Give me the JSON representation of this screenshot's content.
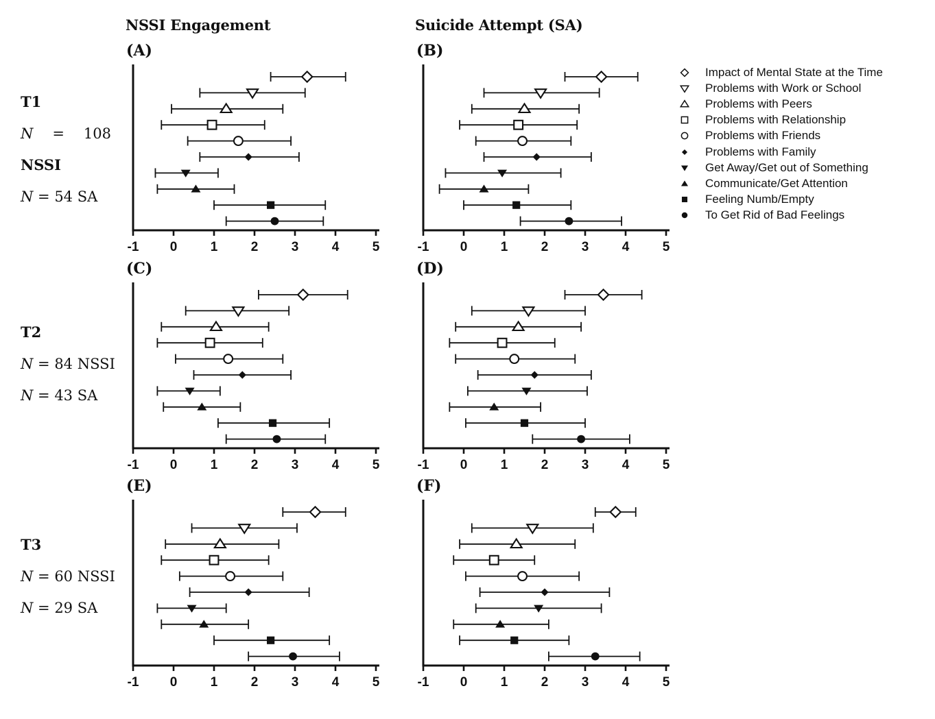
{
  "figure": {
    "column_headers": [
      "NSSI Engagement",
      "Suicide Attempt (SA)"
    ],
    "side_labels": [
      {
        "lines": [
          {
            "text": "T1",
            "bold": true
          },
          {
            "text": "N = 108",
            "justify": true
          },
          {
            "text": "NSSI",
            "bold": true
          },
          {
            "text": "N = 54 SA"
          }
        ]
      },
      {
        "lines": [
          {
            "text": "T2",
            "bold": true
          },
          {
            "text": "N = 84 NSSI"
          },
          {
            "text": "N = 43 SA"
          }
        ]
      },
      {
        "lines": [
          {
            "text": "T3",
            "bold": true
          },
          {
            "text": "N = 60 NSSI"
          },
          {
            "text": "N = 29 SA"
          }
        ]
      }
    ],
    "colors": {
      "ink": "#111111",
      "background": "#ffffff"
    }
  },
  "legend": [
    {
      "marker": "open-diamond",
      "label": "Impact of Mental State at the Time"
    },
    {
      "marker": "open-triangle-down",
      "label": "Problems with Work or School"
    },
    {
      "marker": "open-triangle-up",
      "label": "Problems with Peers"
    },
    {
      "marker": "open-square",
      "label": "Problems with Relationship"
    },
    {
      "marker": "open-circle",
      "label": "Problems with Friends"
    },
    {
      "marker": "filled-diamond",
      "label": "Problems with Family"
    },
    {
      "marker": "filled-triangle-down",
      "label": "Get Away/Get out of Something"
    },
    {
      "marker": "filled-triangle-up",
      "label": "Communicate/Get Attention"
    },
    {
      "marker": "filled-square",
      "label": "Feeling Numb/Empty"
    },
    {
      "marker": "filled-circle",
      "label": "To Get Rid of Bad Feelings"
    }
  ],
  "chart_data": [
    {
      "panel_label": "(A)",
      "type": "scatter",
      "row_group": "T1",
      "column_group": "NSSI Engagement",
      "xlim": [
        -1,
        5
      ],
      "xticks": [
        -1,
        0,
        1,
        2,
        3,
        4,
        5
      ],
      "series": [
        {
          "name": "Impact of Mental State at the Time",
          "marker": "open-diamond",
          "mean": 3.3,
          "ci": [
            2.4,
            4.25
          ]
        },
        {
          "name": "Problems with Work or School",
          "marker": "open-triangle-down",
          "mean": 1.95,
          "ci": [
            0.65,
            3.25
          ]
        },
        {
          "name": "Problems with Peers",
          "marker": "open-triangle-up",
          "mean": 1.3,
          "ci": [
            -0.05,
            2.7
          ]
        },
        {
          "name": "Problems with Relationship",
          "marker": "open-square",
          "mean": 0.95,
          "ci": [
            -0.3,
            2.25
          ]
        },
        {
          "name": "Problems with Friends",
          "marker": "open-circle",
          "mean": 1.6,
          "ci": [
            0.35,
            2.9
          ]
        },
        {
          "name": "Problems with Family",
          "marker": "filled-diamond",
          "mean": 1.85,
          "ci": [
            0.65,
            3.1
          ]
        },
        {
          "name": "Get Away/Get out of Something",
          "marker": "filled-triangle-down",
          "mean": 0.3,
          "ci": [
            -0.45,
            1.1
          ]
        },
        {
          "name": "Communicate/Get Attention",
          "marker": "filled-triangle-up",
          "mean": 0.55,
          "ci": [
            -0.4,
            1.5
          ]
        },
        {
          "name": "Feeling Numb/Empty",
          "marker": "filled-square",
          "mean": 2.4,
          "ci": [
            1.0,
            3.75
          ]
        },
        {
          "name": "To Get Rid of Bad Feelings",
          "marker": "filled-circle",
          "mean": 2.5,
          "ci": [
            1.3,
            3.7
          ]
        }
      ]
    },
    {
      "panel_label": "(B)",
      "type": "scatter",
      "row_group": "T1",
      "column_group": "Suicide Attempt (SA)",
      "xlim": [
        -1,
        5
      ],
      "xticks": [
        -1,
        0,
        1,
        2,
        3,
        4,
        5
      ],
      "series": [
        {
          "name": "Impact of Mental State at the Time",
          "marker": "open-diamond",
          "mean": 3.4,
          "ci": [
            2.5,
            4.3
          ]
        },
        {
          "name": "Problems with Work or School",
          "marker": "open-triangle-down",
          "mean": 1.9,
          "ci": [
            0.5,
            3.35
          ]
        },
        {
          "name": "Problems with Peers",
          "marker": "open-triangle-up",
          "mean": 1.5,
          "ci": [
            0.2,
            2.85
          ]
        },
        {
          "name": "Problems with Relationship",
          "marker": "open-square",
          "mean": 1.35,
          "ci": [
            -0.1,
            2.8
          ]
        },
        {
          "name": "Problems with Friends",
          "marker": "open-circle",
          "mean": 1.45,
          "ci": [
            0.3,
            2.65
          ]
        },
        {
          "name": "Problems with Family",
          "marker": "filled-diamond",
          "mean": 1.8,
          "ci": [
            0.5,
            3.15
          ]
        },
        {
          "name": "Get Away/Get out of Something",
          "marker": "filled-triangle-down",
          "mean": 0.95,
          "ci": [
            -0.45,
            2.4
          ]
        },
        {
          "name": "Communicate/Get Attention",
          "marker": "filled-triangle-up",
          "mean": 0.5,
          "ci": [
            -0.6,
            1.6
          ]
        },
        {
          "name": "Feeling Numb/Empty",
          "marker": "filled-square",
          "mean": 1.3,
          "ci": [
            0.0,
            2.65
          ]
        },
        {
          "name": "To Get Rid of Bad Feelings",
          "marker": "filled-circle",
          "mean": 2.6,
          "ci": [
            1.4,
            3.9
          ]
        }
      ]
    },
    {
      "panel_label": "(C)",
      "type": "scatter",
      "row_group": "T2",
      "column_group": "NSSI Engagement",
      "xlim": [
        -1,
        5
      ],
      "xticks": [
        -1,
        0,
        1,
        2,
        3,
        4,
        5
      ],
      "series": [
        {
          "name": "Impact of Mental State at the Time",
          "marker": "open-diamond",
          "mean": 3.2,
          "ci": [
            2.1,
            4.3
          ]
        },
        {
          "name": "Problems with Work or School",
          "marker": "open-triangle-down",
          "mean": 1.6,
          "ci": [
            0.3,
            2.85
          ]
        },
        {
          "name": "Problems with Peers",
          "marker": "open-triangle-up",
          "mean": 1.05,
          "ci": [
            -0.3,
            2.35
          ]
        },
        {
          "name": "Problems with Relationship",
          "marker": "open-square",
          "mean": 0.9,
          "ci": [
            -0.4,
            2.2
          ]
        },
        {
          "name": "Problems with Friends",
          "marker": "open-circle",
          "mean": 1.35,
          "ci": [
            0.05,
            2.7
          ]
        },
        {
          "name": "Problems with Family",
          "marker": "filled-diamond",
          "mean": 1.7,
          "ci": [
            0.5,
            2.9
          ]
        },
        {
          "name": "Get Away/Get out of Something",
          "marker": "filled-triangle-down",
          "mean": 0.4,
          "ci": [
            -0.4,
            1.15
          ]
        },
        {
          "name": "Communicate/Get Attention",
          "marker": "filled-triangle-up",
          "mean": 0.7,
          "ci": [
            -0.25,
            1.65
          ]
        },
        {
          "name": "Feeling Numb/Empty",
          "marker": "filled-square",
          "mean": 2.45,
          "ci": [
            1.1,
            3.85
          ]
        },
        {
          "name": "To Get Rid of Bad Feelings",
          "marker": "filled-circle",
          "mean": 2.55,
          "ci": [
            1.3,
            3.75
          ]
        }
      ]
    },
    {
      "panel_label": "(D)",
      "type": "scatter",
      "row_group": "T2",
      "column_group": "Suicide Attempt (SA)",
      "xlim": [
        -1,
        5
      ],
      "xticks": [
        -1,
        0,
        1,
        2,
        3,
        4,
        5
      ],
      "series": [
        {
          "name": "Impact of Mental State at the Time",
          "marker": "open-diamond",
          "mean": 3.45,
          "ci": [
            2.5,
            4.4
          ]
        },
        {
          "name": "Problems with Work or School",
          "marker": "open-triangle-down",
          "mean": 1.6,
          "ci": [
            0.2,
            3.0
          ]
        },
        {
          "name": "Problems with Peers",
          "marker": "open-triangle-up",
          "mean": 1.35,
          "ci": [
            -0.2,
            2.9
          ]
        },
        {
          "name": "Problems with Relationship",
          "marker": "open-square",
          "mean": 0.95,
          "ci": [
            -0.35,
            2.25
          ]
        },
        {
          "name": "Problems with Friends",
          "marker": "open-circle",
          "mean": 1.25,
          "ci": [
            -0.2,
            2.75
          ]
        },
        {
          "name": "Problems with Family",
          "marker": "filled-diamond",
          "mean": 1.75,
          "ci": [
            0.35,
            3.15
          ]
        },
        {
          "name": "Get Away/Get out of Something",
          "marker": "filled-triangle-down",
          "mean": 1.55,
          "ci": [
            0.1,
            3.05
          ]
        },
        {
          "name": "Communicate/Get Attention",
          "marker": "filled-triangle-up",
          "mean": 0.75,
          "ci": [
            -0.35,
            1.9
          ]
        },
        {
          "name": "Feeling Numb/Empty",
          "marker": "filled-square",
          "mean": 1.5,
          "ci": [
            0.05,
            3.0
          ]
        },
        {
          "name": "To Get Rid of Bad Feelings",
          "marker": "filled-circle",
          "mean": 2.9,
          "ci": [
            1.7,
            4.1
          ]
        }
      ]
    },
    {
      "panel_label": "(E)",
      "type": "scatter",
      "row_group": "T3",
      "column_group": "NSSI Engagement",
      "xlim": [
        -1,
        5
      ],
      "xticks": [
        -1,
        0,
        1,
        2,
        3,
        4,
        5
      ],
      "series": [
        {
          "name": "Impact of Mental State at the Time",
          "marker": "open-diamond",
          "mean": 3.5,
          "ci": [
            2.7,
            4.25
          ]
        },
        {
          "name": "Problems with Work or School",
          "marker": "open-triangle-down",
          "mean": 1.75,
          "ci": [
            0.45,
            3.05
          ]
        },
        {
          "name": "Problems with Peers",
          "marker": "open-triangle-up",
          "mean": 1.15,
          "ci": [
            -0.2,
            2.6
          ]
        },
        {
          "name": "Problems with Relationship",
          "marker": "open-square",
          "mean": 1.0,
          "ci": [
            -0.3,
            2.35
          ]
        },
        {
          "name": "Problems with Friends",
          "marker": "open-circle",
          "mean": 1.4,
          "ci": [
            0.15,
            2.7
          ]
        },
        {
          "name": "Problems with Family",
          "marker": "filled-diamond",
          "mean": 1.85,
          "ci": [
            0.4,
            3.35
          ]
        },
        {
          "name": "Get Away/Get out of Something",
          "marker": "filled-triangle-down",
          "mean": 0.45,
          "ci": [
            -0.4,
            1.3
          ]
        },
        {
          "name": "Communicate/Get Attention",
          "marker": "filled-triangle-up",
          "mean": 0.75,
          "ci": [
            -0.3,
            1.85
          ]
        },
        {
          "name": "Feeling Numb/Empty",
          "marker": "filled-square",
          "mean": 2.4,
          "ci": [
            1.0,
            3.85
          ]
        },
        {
          "name": "To Get Rid of Bad Feelings",
          "marker": "filled-circle",
          "mean": 2.95,
          "ci": [
            1.85,
            4.1
          ]
        }
      ]
    },
    {
      "panel_label": "(F)",
      "type": "scatter",
      "row_group": "T3",
      "column_group": "Suicide Attempt (SA)",
      "xlim": [
        -1,
        5
      ],
      "xticks": [
        -1,
        0,
        1,
        2,
        3,
        4,
        5
      ],
      "series": [
        {
          "name": "Impact of Mental State at the Time",
          "marker": "open-diamond",
          "mean": 3.75,
          "ci": [
            3.25,
            4.25
          ]
        },
        {
          "name": "Problems with Work or School",
          "marker": "open-triangle-down",
          "mean": 1.7,
          "ci": [
            0.2,
            3.2
          ]
        },
        {
          "name": "Problems with Peers",
          "marker": "open-triangle-up",
          "mean": 1.3,
          "ci": [
            -0.1,
            2.75
          ]
        },
        {
          "name": "Problems with Relationship",
          "marker": "open-square",
          "mean": 0.75,
          "ci": [
            -0.25,
            1.75
          ]
        },
        {
          "name": "Problems with Friends",
          "marker": "open-circle",
          "mean": 1.45,
          "ci": [
            0.05,
            2.85
          ]
        },
        {
          "name": "Problems with Family",
          "marker": "filled-diamond",
          "mean": 2.0,
          "ci": [
            0.4,
            3.6
          ]
        },
        {
          "name": "Get Away/Get out of Something",
          "marker": "filled-triangle-down",
          "mean": 1.85,
          "ci": [
            0.3,
            3.4
          ]
        },
        {
          "name": "Communicate/Get Attention",
          "marker": "filled-triangle-up",
          "mean": 0.9,
          "ci": [
            -0.25,
            2.1
          ]
        },
        {
          "name": "Feeling Numb/Empty",
          "marker": "filled-square",
          "mean": 1.25,
          "ci": [
            -0.1,
            2.6
          ]
        },
        {
          "name": "To Get Rid of Bad Feelings",
          "marker": "filled-circle",
          "mean": 3.25,
          "ci": [
            2.1,
            4.35
          ]
        }
      ]
    }
  ]
}
